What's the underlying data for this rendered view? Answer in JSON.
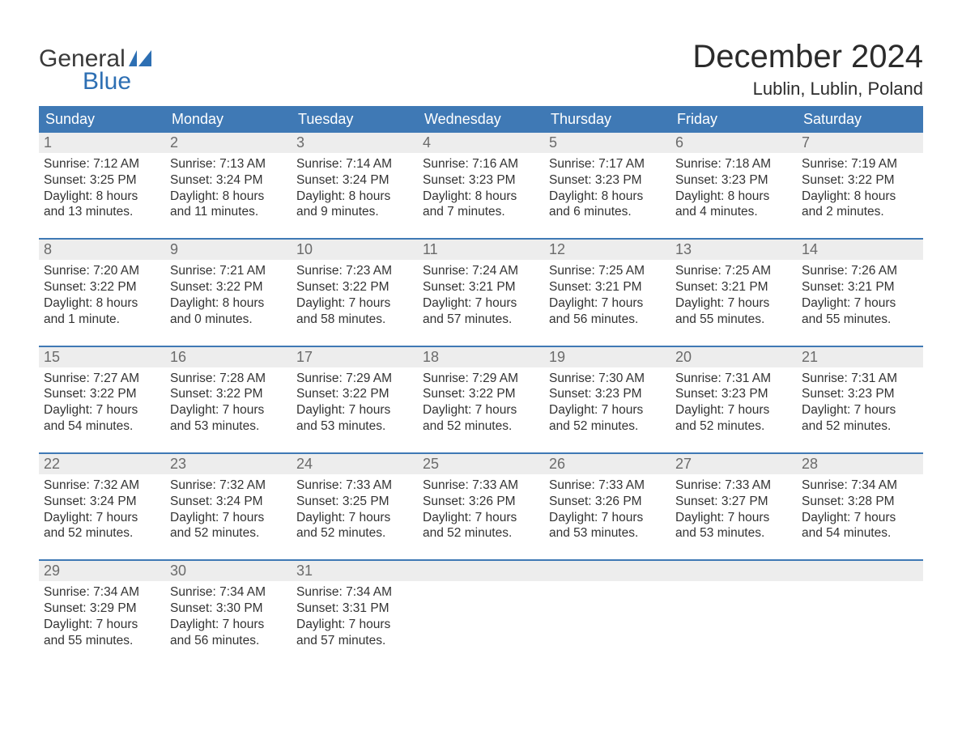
{
  "brand": {
    "word1": "General",
    "word2": "Blue",
    "word1_color": "#3a3a3a",
    "word2_color": "#2d6fb3",
    "flag_color": "#2d6fb3"
  },
  "header": {
    "title": "December 2024",
    "location": "Lublin, Lublin, Poland",
    "title_fontsize": 40,
    "location_fontsize": 22,
    "title_color": "#2b2b2b"
  },
  "style": {
    "header_row_bg": "#3f79b5",
    "header_row_text": "#ffffff",
    "week_divider_color": "#3f79b5",
    "daynum_bg": "#ededed",
    "daynum_color": "#6b6b6b",
    "body_text_color": "#333333",
    "background_color": "#ffffff",
    "body_fontsize": 15.5,
    "weekday_fontsize": 18,
    "columns": 7
  },
  "weekdays": [
    "Sunday",
    "Monday",
    "Tuesday",
    "Wednesday",
    "Thursday",
    "Friday",
    "Saturday"
  ],
  "labels": {
    "sunrise": "Sunrise:",
    "sunset": "Sunset:",
    "daylight": "Daylight:"
  },
  "weeks": [
    [
      {
        "day": "1",
        "sunrise": "7:12 AM",
        "sunset": "3:25 PM",
        "daylight": "8 hours and 13 minutes."
      },
      {
        "day": "2",
        "sunrise": "7:13 AM",
        "sunset": "3:24 PM",
        "daylight": "8 hours and 11 minutes."
      },
      {
        "day": "3",
        "sunrise": "7:14 AM",
        "sunset": "3:24 PM",
        "daylight": "8 hours and 9 minutes."
      },
      {
        "day": "4",
        "sunrise": "7:16 AM",
        "sunset": "3:23 PM",
        "daylight": "8 hours and 7 minutes."
      },
      {
        "day": "5",
        "sunrise": "7:17 AM",
        "sunset": "3:23 PM",
        "daylight": "8 hours and 6 minutes."
      },
      {
        "day": "6",
        "sunrise": "7:18 AM",
        "sunset": "3:23 PM",
        "daylight": "8 hours and 4 minutes."
      },
      {
        "day": "7",
        "sunrise": "7:19 AM",
        "sunset": "3:22 PM",
        "daylight": "8 hours and 2 minutes."
      }
    ],
    [
      {
        "day": "8",
        "sunrise": "7:20 AM",
        "sunset": "3:22 PM",
        "daylight": "8 hours and 1 minute."
      },
      {
        "day": "9",
        "sunrise": "7:21 AM",
        "sunset": "3:22 PM",
        "daylight": "8 hours and 0 minutes."
      },
      {
        "day": "10",
        "sunrise": "7:23 AM",
        "sunset": "3:22 PM",
        "daylight": "7 hours and 58 minutes."
      },
      {
        "day": "11",
        "sunrise": "7:24 AM",
        "sunset": "3:21 PM",
        "daylight": "7 hours and 57 minutes."
      },
      {
        "day": "12",
        "sunrise": "7:25 AM",
        "sunset": "3:21 PM",
        "daylight": "7 hours and 56 minutes."
      },
      {
        "day": "13",
        "sunrise": "7:25 AM",
        "sunset": "3:21 PM",
        "daylight": "7 hours and 55 minutes."
      },
      {
        "day": "14",
        "sunrise": "7:26 AM",
        "sunset": "3:21 PM",
        "daylight": "7 hours and 55 minutes."
      }
    ],
    [
      {
        "day": "15",
        "sunrise": "7:27 AM",
        "sunset": "3:22 PM",
        "daylight": "7 hours and 54 minutes."
      },
      {
        "day": "16",
        "sunrise": "7:28 AM",
        "sunset": "3:22 PM",
        "daylight": "7 hours and 53 minutes."
      },
      {
        "day": "17",
        "sunrise": "7:29 AM",
        "sunset": "3:22 PM",
        "daylight": "7 hours and 53 minutes."
      },
      {
        "day": "18",
        "sunrise": "7:29 AM",
        "sunset": "3:22 PM",
        "daylight": "7 hours and 52 minutes."
      },
      {
        "day": "19",
        "sunrise": "7:30 AM",
        "sunset": "3:23 PM",
        "daylight": "7 hours and 52 minutes."
      },
      {
        "day": "20",
        "sunrise": "7:31 AM",
        "sunset": "3:23 PM",
        "daylight": "7 hours and 52 minutes."
      },
      {
        "day": "21",
        "sunrise": "7:31 AM",
        "sunset": "3:23 PM",
        "daylight": "7 hours and 52 minutes."
      }
    ],
    [
      {
        "day": "22",
        "sunrise": "7:32 AM",
        "sunset": "3:24 PM",
        "daylight": "7 hours and 52 minutes."
      },
      {
        "day": "23",
        "sunrise": "7:32 AM",
        "sunset": "3:24 PM",
        "daylight": "7 hours and 52 minutes."
      },
      {
        "day": "24",
        "sunrise": "7:33 AM",
        "sunset": "3:25 PM",
        "daylight": "7 hours and 52 minutes."
      },
      {
        "day": "25",
        "sunrise": "7:33 AM",
        "sunset": "3:26 PM",
        "daylight": "7 hours and 52 minutes."
      },
      {
        "day": "26",
        "sunrise": "7:33 AM",
        "sunset": "3:26 PM",
        "daylight": "7 hours and 53 minutes."
      },
      {
        "day": "27",
        "sunrise": "7:33 AM",
        "sunset": "3:27 PM",
        "daylight": "7 hours and 53 minutes."
      },
      {
        "day": "28",
        "sunrise": "7:34 AM",
        "sunset": "3:28 PM",
        "daylight": "7 hours and 54 minutes."
      }
    ],
    [
      {
        "day": "29",
        "sunrise": "7:34 AM",
        "sunset": "3:29 PM",
        "daylight": "7 hours and 55 minutes."
      },
      {
        "day": "30",
        "sunrise": "7:34 AM",
        "sunset": "3:30 PM",
        "daylight": "7 hours and 56 minutes."
      },
      {
        "day": "31",
        "sunrise": "7:34 AM",
        "sunset": "3:31 PM",
        "daylight": "7 hours and 57 minutes."
      },
      {
        "day": "",
        "empty": true
      },
      {
        "day": "",
        "empty": true
      },
      {
        "day": "",
        "empty": true
      },
      {
        "day": "",
        "empty": true
      }
    ]
  ]
}
